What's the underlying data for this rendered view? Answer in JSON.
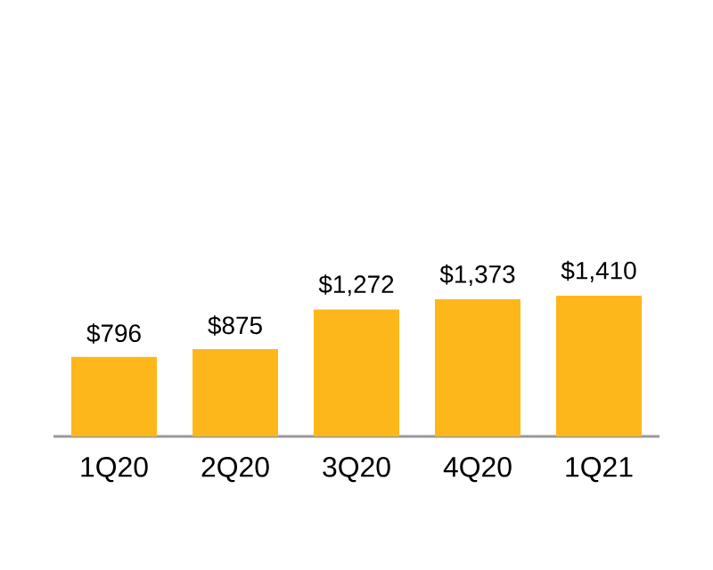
{
  "chart_data": {
    "type": "bar",
    "categories": [
      "1Q20",
      "2Q20",
      "3Q20",
      "4Q20",
      "1Q21"
    ],
    "values": [
      796,
      875,
      1272,
      1373,
      1410
    ],
    "value_labels": [
      "$796",
      "$875",
      "$1,272",
      "$1,373",
      "$1,410"
    ],
    "color": "#fdb71b"
  }
}
